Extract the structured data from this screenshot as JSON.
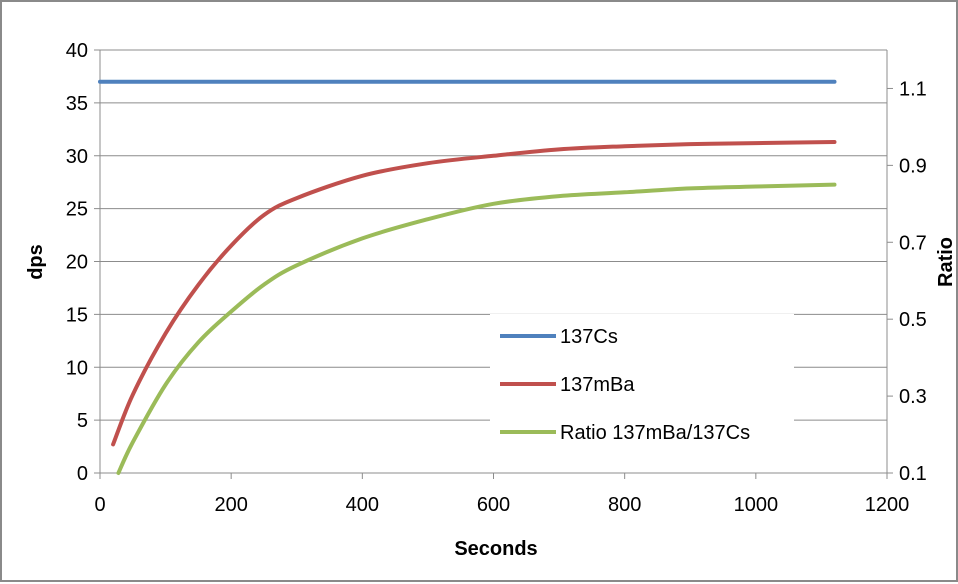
{
  "chart_data": {
    "type": "line",
    "xlabel": "Seconds",
    "ylabel": "dps",
    "y2label": "Ratio",
    "xlim": [
      0,
      1200
    ],
    "ylim": [
      0,
      40
    ],
    "y2lim": [
      0.1,
      1.2
    ],
    "x_ticks": [
      "0",
      "200",
      "400",
      "600",
      "800",
      "1000",
      "1200"
    ],
    "y_ticks": [
      "0",
      "5",
      "10",
      "15",
      "20",
      "25",
      "30",
      "35",
      "40"
    ],
    "y2_ticks": [
      "0.1",
      "0.3",
      "0.5",
      "0.7",
      "0.9",
      "1.1"
    ],
    "grid": true,
    "legend_position": "bottom-center",
    "series": [
      {
        "name": "137Cs",
        "axis": "left",
        "color": "#4f81bd",
        "x": [
          0,
          200,
          400,
          600,
          800,
          1000,
          1120
        ],
        "y": [
          37,
          37,
          37,
          37,
          37,
          37,
          37
        ]
      },
      {
        "name": "137mBa",
        "axis": "left",
        "color": "#c0504d",
        "x": [
          20,
          50,
          100,
          150,
          200,
          250,
          300,
          400,
          500,
          600,
          700,
          800,
          900,
          1000,
          1120
        ],
        "y": [
          2.7,
          7.4,
          13.2,
          17.8,
          21.5,
          24.4,
          26.0,
          28.1,
          29.3,
          30.0,
          30.6,
          30.9,
          31.1,
          31.2,
          31.3
        ]
      },
      {
        "name": "Ratio 137mBa/137Cs",
        "axis": "right",
        "color": "#9bbb59",
        "x": [
          28,
          50,
          100,
          150,
          200,
          250,
          300,
          400,
          500,
          600,
          700,
          800,
          900,
          1000,
          1120
        ],
        "y": [
          0.1,
          0.18,
          0.33,
          0.44,
          0.52,
          0.59,
          0.64,
          0.71,
          0.76,
          0.8,
          0.82,
          0.83,
          0.84,
          0.845,
          0.85
        ]
      }
    ]
  }
}
